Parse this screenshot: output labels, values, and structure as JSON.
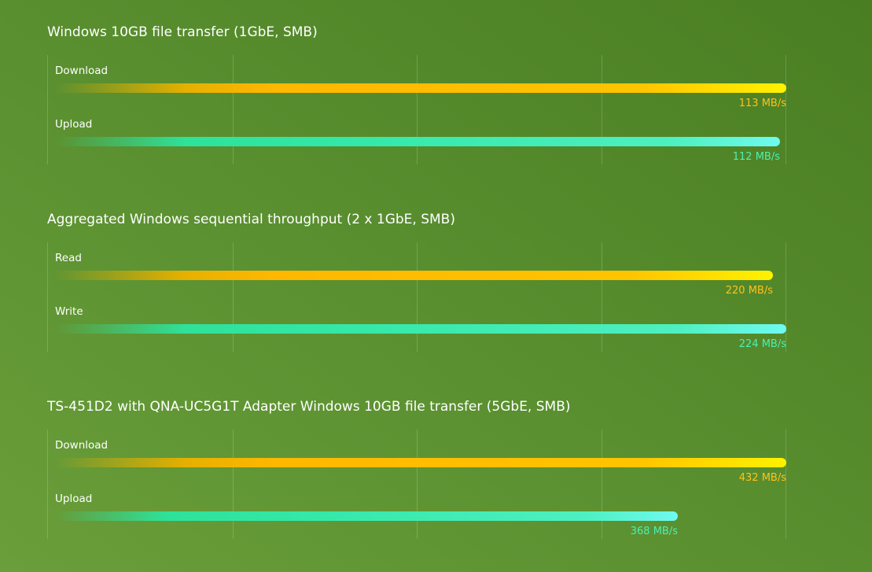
{
  "colors": {
    "download": "#ffb700",
    "upload": "#33e8a8",
    "background": "#5a9030"
  },
  "chart_data": [
    {
      "type": "bar",
      "orientation": "horizontal",
      "title": "Windows 10GB file transfer (1GbE, SMB)",
      "unit": "MB/s",
      "xlim": [
        0,
        113
      ],
      "grid": true,
      "categories": [
        "Download",
        "Upload"
      ],
      "values": [
        113,
        112
      ],
      "value_labels": [
        "113 MB/s",
        "112 MB/s"
      ],
      "styles": [
        "orange",
        "teal"
      ]
    },
    {
      "type": "bar",
      "orientation": "horizontal",
      "title": "Aggregated Windows sequential throughput (2 x 1GbE, SMB)",
      "unit": "MB/s",
      "xlim": [
        0,
        224
      ],
      "grid": true,
      "categories": [
        "Read",
        "Write"
      ],
      "values": [
        220,
        224
      ],
      "value_labels": [
        "220 MB/s",
        "224 MB/s"
      ],
      "styles": [
        "orange",
        "teal"
      ]
    },
    {
      "type": "bar",
      "orientation": "horizontal",
      "title": "TS-451D2 with QNA-UC5G1T Adapter Windows 10GB file transfer (5GbE, SMB)",
      "unit": "MB/s",
      "xlim": [
        0,
        432
      ],
      "grid": true,
      "categories": [
        "Download",
        "Upload"
      ],
      "values": [
        432,
        368
      ],
      "value_labels": [
        "432 MB/s",
        "368 MB/s"
      ],
      "styles": [
        "orange",
        "teal"
      ]
    }
  ]
}
